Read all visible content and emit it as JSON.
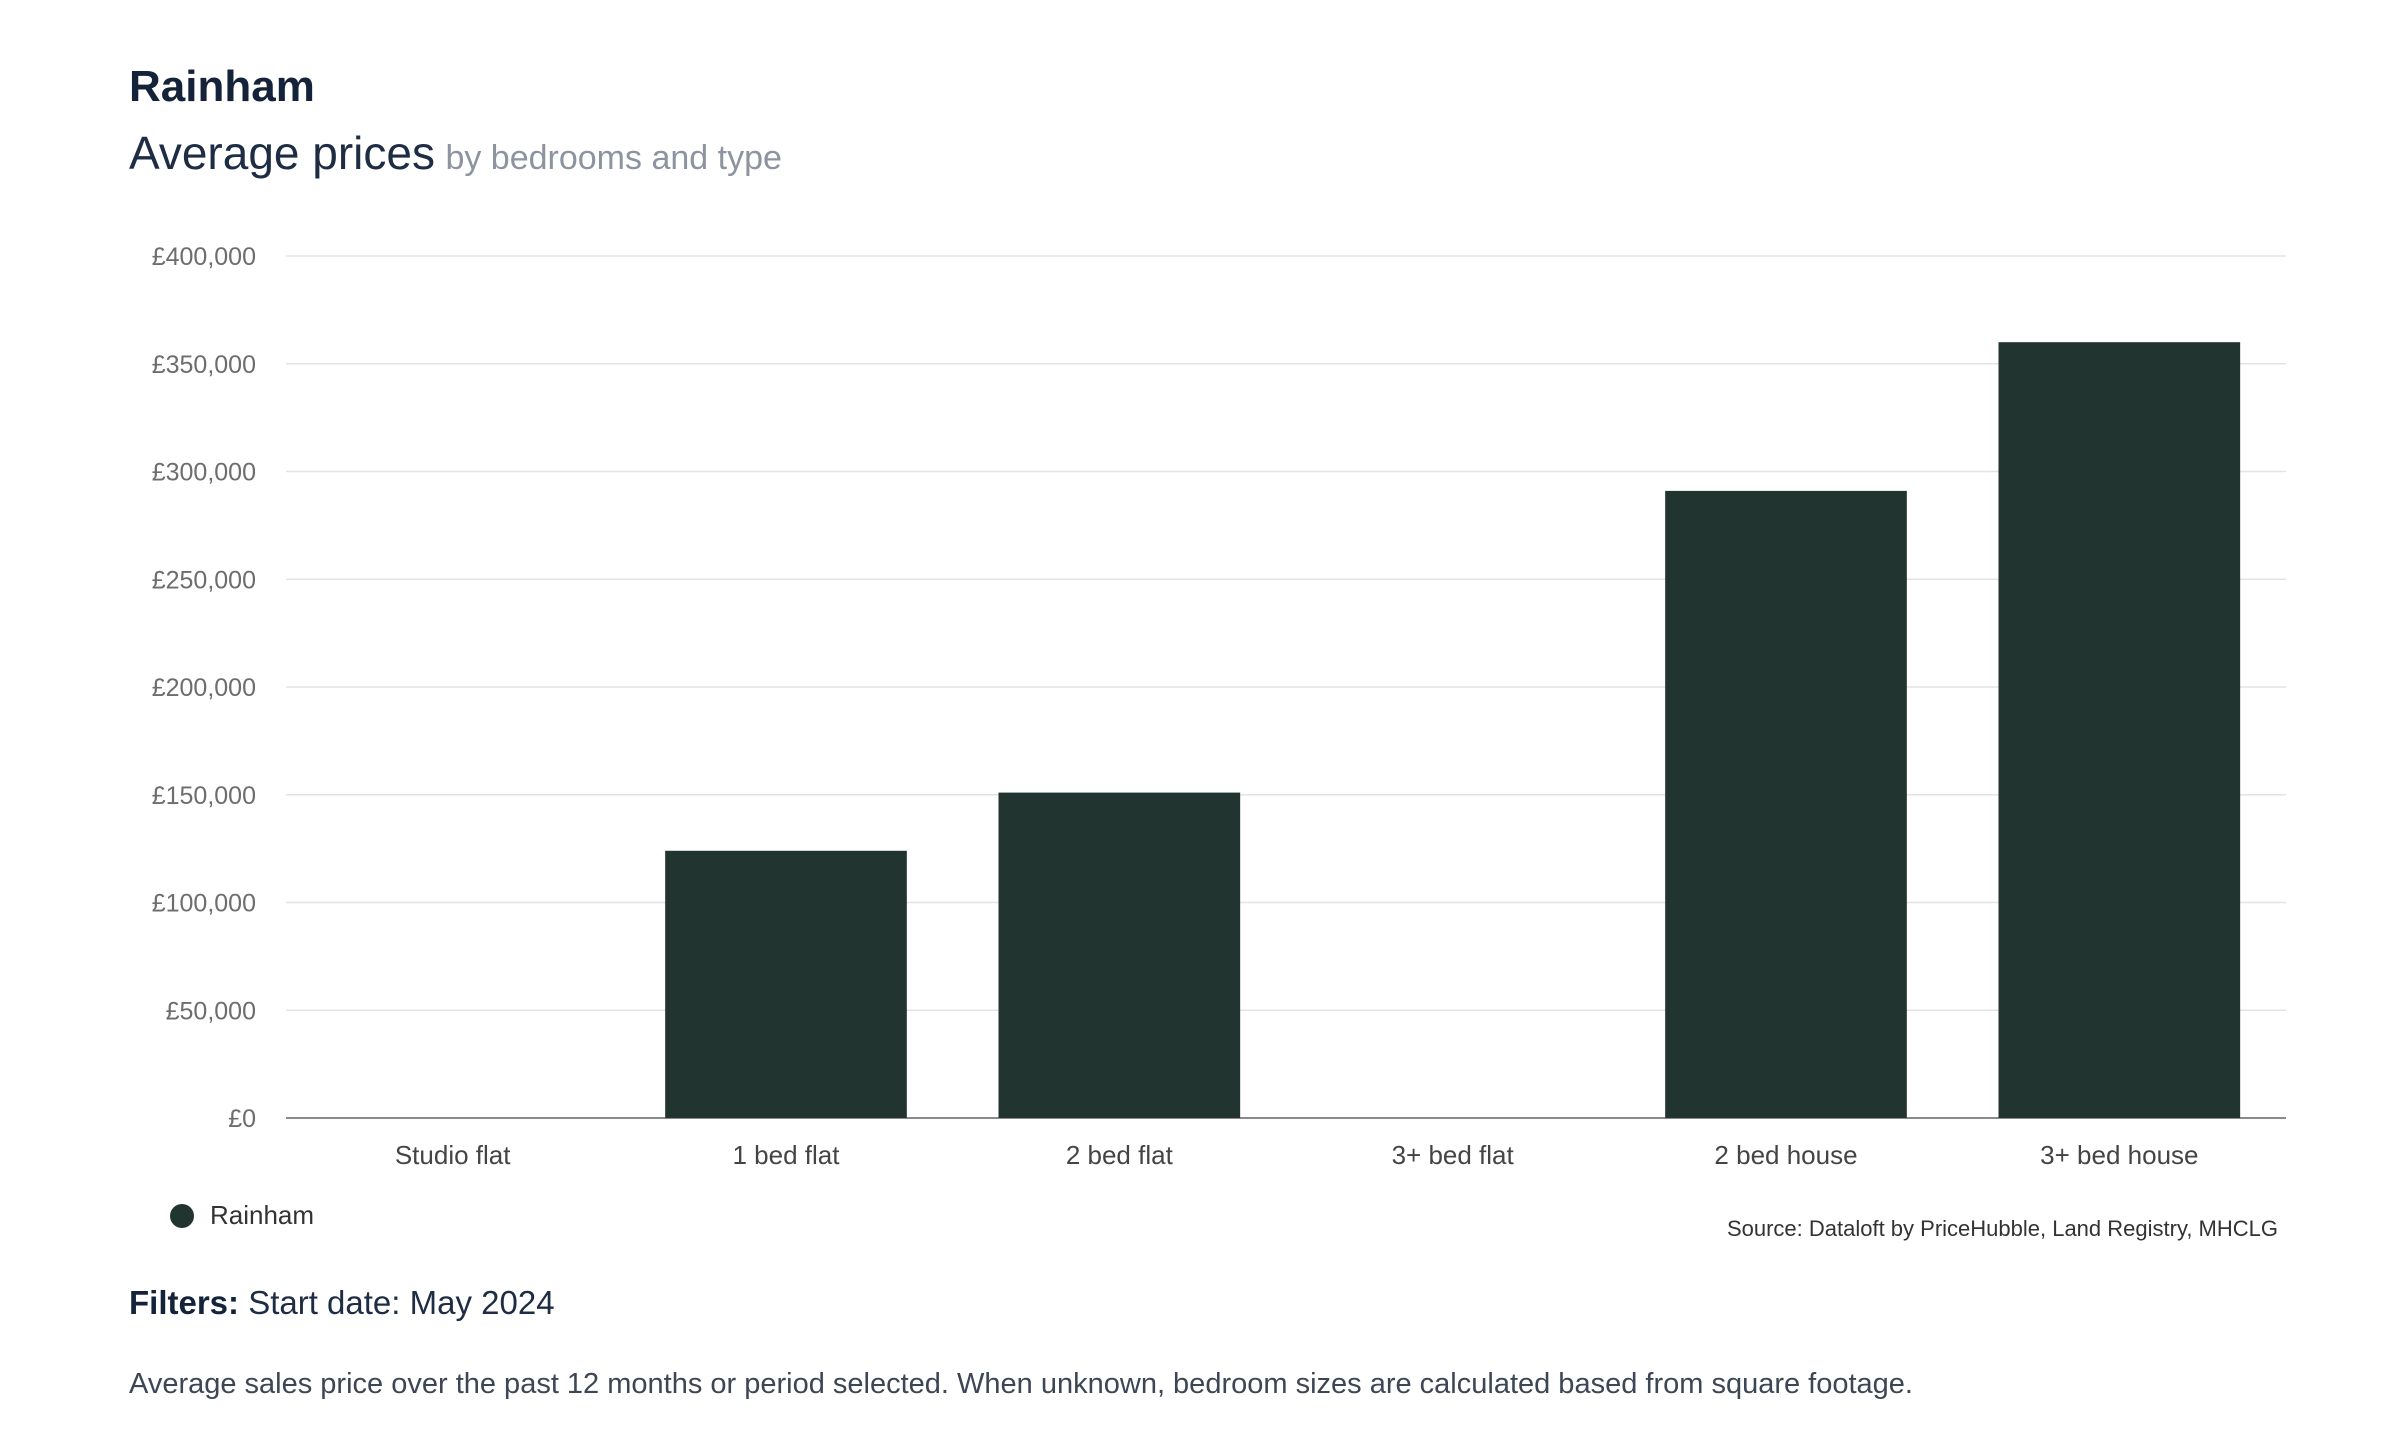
{
  "header": {
    "title": "Rainham",
    "subtitle": "Average prices",
    "subtitle_qualifier": "by bedrooms and type"
  },
  "legend": {
    "label": "Rainham",
    "color": "#213430"
  },
  "source": "Source: Dataloft by PriceHubble, Land Registry, MHCLG",
  "filters": {
    "label": "Filters:",
    "value": "Start date: May 2024"
  },
  "note": "Average sales price over the past 12 months or period selected. When unknown, bedroom sizes are calculated based from square footage.",
  "chart_data": {
    "type": "bar",
    "categories": [
      "Studio flat",
      "1 bed flat",
      "2 bed flat",
      "3+ bed flat",
      "2 bed house",
      "3+ bed house"
    ],
    "series": [
      {
        "name": "Rainham",
        "values": [
          null,
          124000,
          151000,
          null,
          291000,
          360000
        ]
      }
    ],
    "ylim": [
      0,
      400000
    ],
    "yticks": [
      0,
      50000,
      100000,
      150000,
      200000,
      250000,
      300000,
      350000,
      400000
    ],
    "ytick_labels": [
      "£0",
      "£50,000",
      "£100,000",
      "£150,000",
      "£200,000",
      "£250,000",
      "£300,000",
      "£350,000",
      "£400,000"
    ],
    "grid": true,
    "legend_position": "bottom-left",
    "bar_color": "#213430",
    "grid_color": "#e3e3e3",
    "axis_color": "#8a8a8a"
  }
}
